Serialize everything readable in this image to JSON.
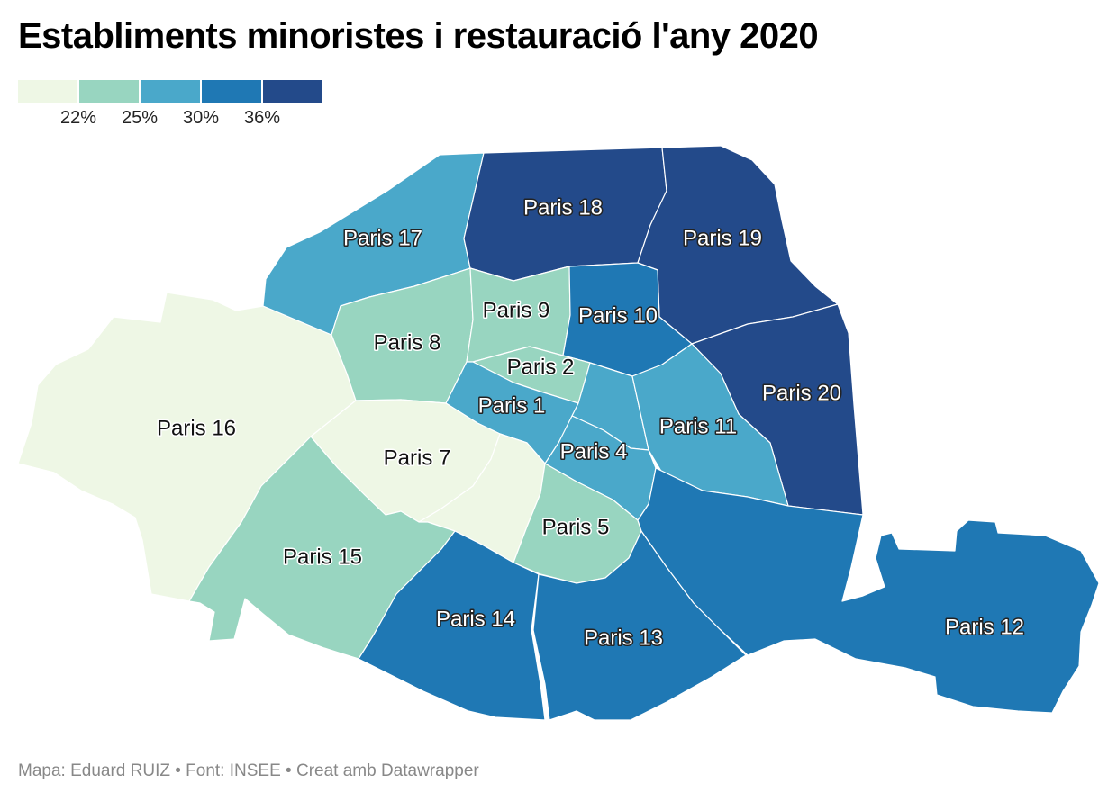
{
  "title": "Establiments minoristes i restauració l'any 2020",
  "footer": "Mapa: Eduard RUIZ • Font: INSEE • Creat amb Datawrapper",
  "legend": {
    "colors": [
      "#eef7e5",
      "#98d5c0",
      "#4aa8ca",
      "#1f78b4",
      "#234a8a"
    ],
    "ticks": [
      "22%",
      "25%",
      "30%",
      "36%"
    ]
  },
  "regions": {
    "p1": {
      "label": "Paris 1",
      "color": "#4aa8ca"
    },
    "p2": {
      "label": "Paris 2",
      "color": "#98d5c0"
    },
    "p3": {
      "color": "#4aa8ca"
    },
    "p4": {
      "label": "Paris 4",
      "color": "#4aa8ca"
    },
    "p5": {
      "label": "Paris 5",
      "color": "#98d5c0"
    },
    "p6": {
      "color": "#eef7e5"
    },
    "p7": {
      "label": "Paris 7",
      "color": "#eef7e5"
    },
    "p8": {
      "label": "Paris 8",
      "color": "#98d5c0"
    },
    "p9": {
      "label": "Paris 9",
      "color": "#98d5c0"
    },
    "p10": {
      "label": "Paris 10",
      "color": "#1f78b4"
    },
    "p11": {
      "label": "Paris 11",
      "color": "#4aa8ca"
    },
    "p12": {
      "label": "Paris 12",
      "color": "#1f78b4"
    },
    "p13": {
      "label": "Paris 13",
      "color": "#1f78b4"
    },
    "p14": {
      "label": "Paris 14",
      "color": "#1f78b4"
    },
    "p15": {
      "label": "Paris 15",
      "color": "#98d5c0"
    },
    "p16": {
      "label": "Paris 16",
      "color": "#eef7e5"
    },
    "p17": {
      "label": "Paris 17",
      "color": "#4aa8ca"
    },
    "p18": {
      "label": "Paris 18",
      "color": "#234a8a"
    },
    "p19": {
      "label": "Paris 19",
      "color": "#234a8a"
    },
    "p20": {
      "label": "Paris 20",
      "color": "#234a8a"
    }
  }
}
